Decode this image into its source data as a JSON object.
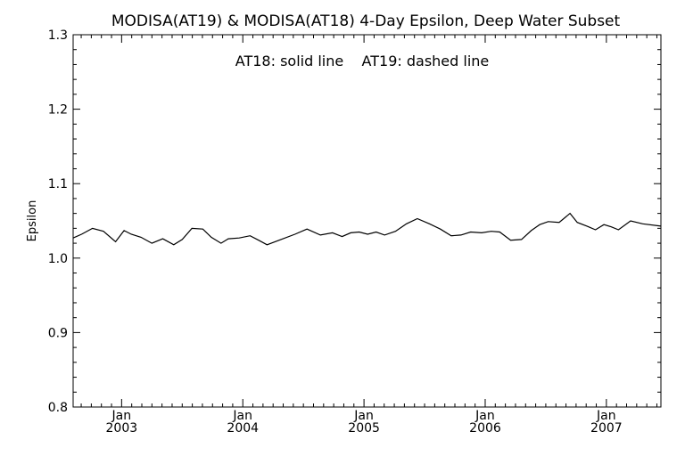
{
  "chart_data": {
    "type": "line",
    "title": "MODISA(AT19) & MODISA(AT18) 4-Day Epsilon, Deep Water Subset",
    "annotation": "AT18: solid line    AT19: dashed line",
    "xlabel": "",
    "ylabel": "Epsilon",
    "xlim": [
      2002.6,
      2007.45
    ],
    "ylim": [
      0.8,
      1.3
    ],
    "grid": false,
    "legend": "none",
    "yticks": [
      "0.8",
      "0.9",
      "1.0",
      "1.1",
      "1.2",
      "1.3"
    ],
    "ytick_values": [
      0.8,
      0.9,
      1.0,
      1.1,
      1.2,
      1.3
    ],
    "xticks": [
      {
        "year": 2003,
        "month": "Jan",
        "label": "2003"
      },
      {
        "year": 2004,
        "month": "Jan",
        "label": "2004"
      },
      {
        "year": 2005,
        "month": "Jan",
        "label": "2005"
      },
      {
        "year": 2006,
        "month": "Jan",
        "label": "2006"
      },
      {
        "year": 2007,
        "month": "Jan",
        "label": "2007"
      }
    ],
    "series": [
      {
        "name": "AT18",
        "style": "solid",
        "color": "#000000",
        "x": [
          2002.6,
          2002.67,
          2002.76,
          2002.85,
          2002.95,
          2003.02,
          2003.08,
          2003.16,
          2003.25,
          2003.34,
          2003.43,
          2003.5,
          2003.58,
          2003.67,
          2003.74,
          2003.82,
          2003.88,
          2003.97,
          2004.06,
          2004.13,
          2004.2,
          2004.3,
          2004.43,
          2004.53,
          2004.64,
          2004.74,
          2004.82,
          2004.89,
          2004.96,
          2005.03,
          2005.1,
          2005.17,
          2005.26,
          2005.35,
          2005.44,
          2005.54,
          2005.63,
          2005.72,
          2005.8,
          2005.88,
          2005.97,
          2006.05,
          2006.12,
          2006.21,
          2006.3,
          2006.38,
          2006.45,
          2006.52,
          2006.61,
          2006.7,
          2006.76,
          2006.84,
          2006.91,
          2006.98,
          2007.04,
          2007.1,
          2007.2,
          2007.3,
          2007.45
        ],
        "y": [
          1.027,
          1.032,
          1.04,
          1.036,
          1.022,
          1.037,
          1.032,
          1.028,
          1.02,
          1.026,
          1.018,
          1.025,
          1.04,
          1.039,
          1.028,
          1.02,
          1.026,
          1.027,
          1.03,
          1.024,
          1.018,
          1.024,
          1.032,
          1.039,
          1.031,
          1.034,
          1.029,
          1.034,
          1.035,
          1.032,
          1.035,
          1.031,
          1.036,
          1.046,
          1.053,
          1.046,
          1.039,
          1.03,
          1.031,
          1.035,
          1.034,
          1.036,
          1.035,
          1.024,
          1.025,
          1.037,
          1.045,
          1.049,
          1.048,
          1.06,
          1.048,
          1.043,
          1.038,
          1.045,
          1.042,
          1.038,
          1.05,
          1.046,
          1.043
        ]
      }
    ]
  }
}
